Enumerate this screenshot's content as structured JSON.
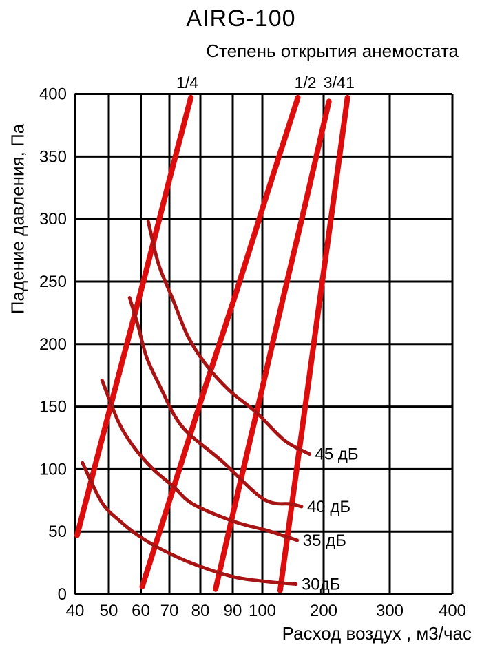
{
  "title": "AIRG-100",
  "subtitle": "Степень открытия анемостата",
  "x_axis": {
    "title": "Расход воздух , м3/час",
    "ticks": [
      40,
      50,
      60,
      70,
      80,
      90,
      100,
      200,
      300,
      400
    ]
  },
  "y_axis": {
    "title": "Падение давления, Па",
    "ticks": [
      0,
      50,
      100,
      150,
      200,
      250,
      300,
      350,
      400
    ],
    "min": 0,
    "max": 400
  },
  "colors": {
    "opening_line": "#dd0d0d",
    "noise_curve": "#a81414",
    "grid": "#000000",
    "text": "#000000"
  },
  "chart_data": {
    "type": "line",
    "title": "AIRG-100",
    "xlabel": "Расход воздух , м3/час",
    "ylabel": "Падение давления, Па",
    "x_scale": "pseudo-log",
    "xlim": [
      40,
      400
    ],
    "ylim": [
      0,
      400
    ],
    "grid": true,
    "series": [
      {
        "name": "opening-1-4",
        "label": "1/4",
        "role": "opening",
        "points": [
          [
            40.6,
            47
          ],
          [
            47.3,
            117
          ],
          [
            54.3,
            187
          ],
          [
            61.7,
            257
          ],
          [
            69.5,
            327
          ],
          [
            76.9,
            397
          ]
        ]
      },
      {
        "name": "opening-1-2",
        "label": "1/2",
        "role": "opening",
        "points": [
          [
            60.5,
            6
          ],
          [
            71.2,
            84
          ],
          [
            81.2,
            163
          ],
          [
            91,
            240
          ],
          [
            107,
            319
          ],
          [
            158,
            397
          ]
        ]
      },
      {
        "name": "opening-3-4",
        "label": "3/4",
        "role": "opening",
        "points": [
          [
            84.7,
            4
          ],
          [
            91.9,
            83
          ],
          [
            99.5,
            160
          ],
          [
            135,
            239
          ],
          [
            172,
            316
          ],
          [
            208,
            394
          ]
        ]
      },
      {
        "name": "opening-1",
        "label": "1",
        "role": "opening",
        "points": [
          [
            129,
            3
          ],
          [
            151,
            82
          ],
          [
            173,
            161
          ],
          [
            195,
            240
          ],
          [
            216,
            319
          ],
          [
            236,
            397
          ]
        ]
      },
      {
        "name": "noise-45",
        "label": "45 дБ",
        "role": "noise",
        "points": [
          [
            62.6,
            298
          ],
          [
            66.2,
            264
          ],
          [
            70.9,
            237
          ],
          [
            76,
            206
          ],
          [
            81.9,
            183
          ],
          [
            88.9,
            163
          ],
          [
            98.1,
            145
          ],
          [
            136,
            123
          ],
          [
            177,
            112
          ]
        ]
      },
      {
        "name": "noise-40",
        "label": "40 дБ",
        "role": "noise",
        "points": [
          [
            56.5,
            237
          ],
          [
            59.1,
            215
          ],
          [
            62.1,
            189
          ],
          [
            67.4,
            163
          ],
          [
            71.6,
            143
          ],
          [
            76.4,
            128
          ],
          [
            86.8,
            106
          ],
          [
            102,
            76
          ],
          [
            147,
            72
          ],
          [
            164,
            70
          ]
        ]
      },
      {
        "name": "noise-35",
        "label": "35 дБ",
        "role": "noise",
        "points": [
          [
            48,
            171
          ],
          [
            53,
            138
          ],
          [
            58,
            117
          ],
          [
            64.3,
            100
          ],
          [
            71.3,
            86
          ],
          [
            77.6,
            72
          ],
          [
            90.5,
            58
          ],
          [
            107,
            51
          ],
          [
            157,
            43
          ]
        ]
      },
      {
        "name": "noise-30",
        "label": "30дБ",
        "role": "noise",
        "points": [
          [
            42.2,
            105
          ],
          [
            48,
            73
          ],
          [
            53.7,
            58
          ],
          [
            59.1,
            47
          ],
          [
            66.2,
            37
          ],
          [
            76.9,
            25
          ],
          [
            90,
            14
          ],
          [
            107,
            10
          ],
          [
            155,
            8
          ]
        ]
      }
    ]
  }
}
